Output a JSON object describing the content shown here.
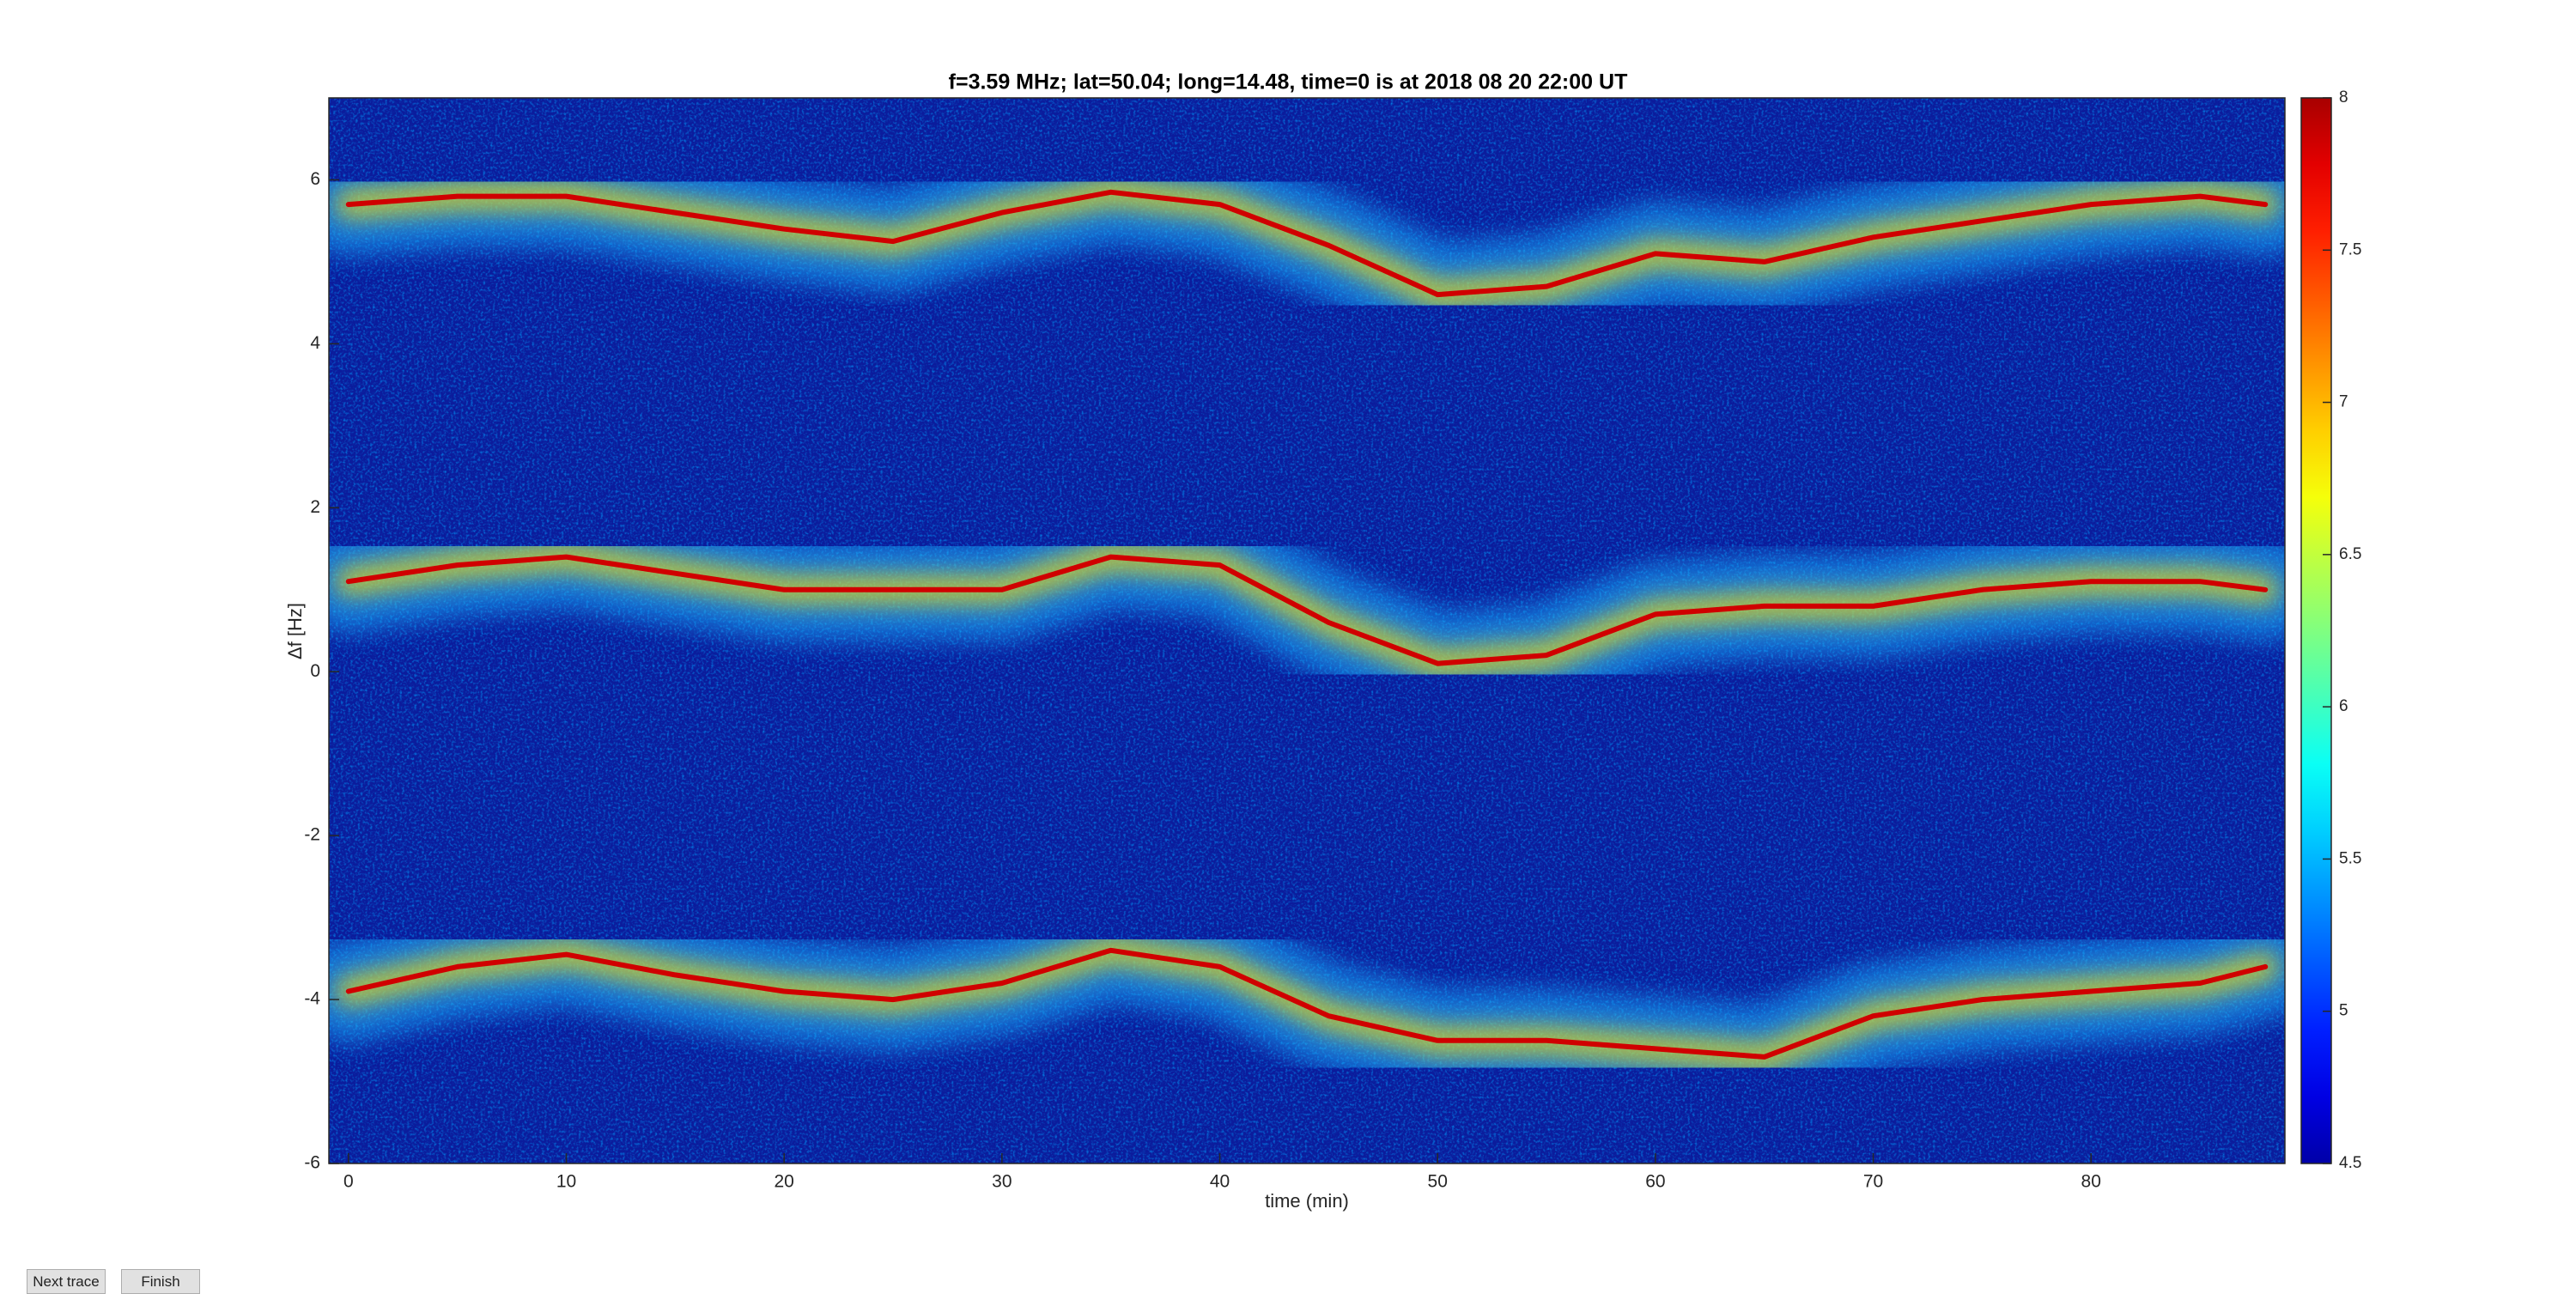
{
  "chart_data": {
    "type": "line",
    "title": "f=3.59 MHz;  lat=50.04; long=14.48, time=0 is at 2018 08 20 22:00 UT",
    "x_label": "time (min)",
    "y_label": "Δf [Hz]",
    "x": [
      0,
      5,
      10,
      15,
      20,
      25,
      30,
      35,
      40,
      45,
      50,
      55,
      60,
      65,
      70,
      75,
      80,
      85,
      88
    ],
    "series": [
      {
        "color": "#d00000",
        "values": [
          5.7,
          5.8,
          5.8,
          5.6,
          5.4,
          5.25,
          5.6,
          5.85,
          5.7,
          5.2,
          4.6,
          4.7,
          5.1,
          5.0,
          5.3,
          5.5,
          5.7,
          5.8,
          5.7
        ]
      },
      {
        "color": "#d00000",
        "values": [
          1.1,
          1.3,
          1.4,
          1.2,
          1.0,
          1.0,
          1.0,
          1.4,
          1.3,
          0.6,
          0.1,
          0.2,
          0.7,
          0.8,
          0.8,
          1.0,
          1.1,
          1.1,
          1.0
        ]
      },
      {
        "color": "#d00000",
        "values": [
          -3.9,
          -3.6,
          -3.45,
          -3.7,
          -3.9,
          -4.0,
          -3.8,
          -3.4,
          -3.6,
          -4.2,
          -4.5,
          -4.5,
          -4.6,
          -4.7,
          -4.2,
          -4.0,
          -3.9,
          -3.8,
          -3.6
        ]
      }
    ],
    "xlim": [
      -0.9,
      88.9
    ],
    "xticks": [
      0,
      10,
      20,
      30,
      40,
      50,
      60,
      70,
      80
    ],
    "ylim": [
      -6,
      7
    ],
    "yticks": [
      -6,
      -4,
      -2,
      0,
      2,
      4,
      6
    ],
    "background": "#0b1c9c",
    "colorbar": {
      "colormap": "jet",
      "lim": [
        4.5,
        8
      ],
      "ticks": [
        4.5,
        5,
        5.5,
        6,
        6.5,
        7,
        7.5,
        8
      ]
    }
  },
  "buttons": [
    "Next trace",
    "Finish"
  ]
}
